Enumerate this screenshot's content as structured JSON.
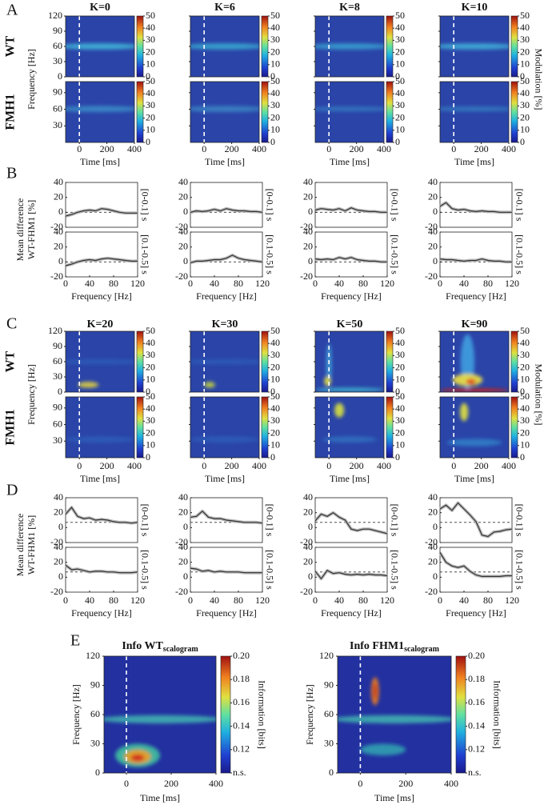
{
  "chart_data": [
    {
      "type": "heatmap_grid",
      "panel": "A",
      "titles": [
        "K=0",
        "K=6",
        "K=8",
        "K=10"
      ],
      "rows": [
        {
          "label": "WT",
          "ylim": [
            0,
            120
          ],
          "yticks": [
            0,
            30,
            60,
            90,
            120
          ]
        },
        {
          "label": "FMH1",
          "ylim": [
            0,
            110
          ],
          "yticks": [
            30,
            60,
            90
          ]
        }
      ],
      "ylabel": "Frequency [Hz]",
      "xlabel": "Time [ms]",
      "xlim": [
        -100,
        400
      ],
      "xticks": [
        0,
        200,
        400
      ],
      "onset": 0,
      "clim": [
        0,
        50
      ],
      "cticks": [
        0,
        10,
        20,
        30,
        40,
        50
      ],
      "clabel": "Modulation [%]"
    },
    {
      "type": "line_grid",
      "panel": "B",
      "ylabel": [
        "Mean difference",
        "WT-FHM1 [%]"
      ],
      "xlabel": "Frequency [Hz]",
      "row_labels": [
        "[0-0.1] s",
        "[0.1-0.5] s"
      ],
      "xlim": [
        0,
        120
      ],
      "xticks": [
        0,
        40,
        80,
        120
      ],
      "ylim": [
        -20,
        40
      ],
      "yticks": [
        -20,
        0,
        20,
        40
      ],
      "hline": 0,
      "color": "#333333",
      "x": [
        0,
        10,
        20,
        30,
        40,
        50,
        60,
        70,
        80,
        90,
        100,
        110,
        120
      ],
      "columns": [
        {
          "rows": [
            {
              "values": [
                -5,
                -3,
                0,
                2,
                3,
                2,
                5,
                4,
                2,
                0,
                -1,
                -1,
                -1
              ]
            },
            {
              "values": [
                -5,
                -3,
                0,
                2,
                3,
                2,
                4,
                5,
                4,
                3,
                2,
                1,
                1
              ]
            }
          ]
        },
        {
          "rows": [
            {
              "values": [
                0,
                2,
                1,
                2,
                4,
                2,
                5,
                3,
                2,
                2,
                1,
                1,
                0
              ]
            },
            {
              "values": [
                -1,
                1,
                1,
                2,
                3,
                3,
                5,
                9,
                5,
                3,
                2,
                1,
                0
              ]
            }
          ]
        },
        {
          "rows": [
            {
              "values": [
                3,
                5,
                4,
                3,
                5,
                2,
                6,
                3,
                2,
                1,
                1,
                0,
                0
              ]
            },
            {
              "values": [
                4,
                3,
                4,
                3,
                6,
                4,
                6,
                3,
                2,
                1,
                1,
                0,
                0
              ]
            }
          ]
        },
        {
          "rows": [
            {
              "values": [
                8,
                13,
                5,
                3,
                4,
                2,
                1,
                2,
                1,
                1,
                0,
                0,
                0
              ]
            },
            {
              "values": [
                4,
                3,
                3,
                2,
                1,
                2,
                2,
                4,
                2,
                1,
                1,
                0,
                0
              ]
            }
          ]
        }
      ]
    },
    {
      "type": "heatmap_grid",
      "panel": "C",
      "titles": [
        "K=20",
        "K=30",
        "K=50",
        "K=90"
      ],
      "rows": [
        {
          "label": "WT",
          "ylim": [
            0,
            120
          ],
          "yticks": [
            0,
            30,
            60,
            90,
            120
          ]
        },
        {
          "label": "FMH1",
          "ylim": [
            0,
            110
          ],
          "yticks": [
            30,
            60,
            90
          ]
        }
      ],
      "ylabel": "Frequency [Hz]",
      "xlabel": "Time [ms]",
      "xlim": [
        -100,
        400
      ],
      "xticks": [
        0,
        200,
        400
      ],
      "onset": 0,
      "clim": [
        0,
        50
      ],
      "cticks": [
        0,
        10,
        20,
        30,
        40,
        50
      ],
      "clabel": "Modulation [%]"
    },
    {
      "type": "line_grid",
      "panel": "D",
      "ylabel": [
        "Mean difference",
        "WT-FHM1 [%]"
      ],
      "xlabel": "Frequency [Hz]",
      "row_labels": [
        "[0-0.1] s",
        "[0.1-0.5] s"
      ],
      "xlim": [
        0,
        120
      ],
      "xticks": [
        0,
        40,
        80,
        120
      ],
      "ylim": [
        -20,
        40
      ],
      "yticks": [
        -20,
        0,
        20,
        40
      ],
      "hline": 7,
      "color": "#333333",
      "x": [
        0,
        10,
        20,
        30,
        40,
        50,
        60,
        70,
        80,
        90,
        100,
        110,
        120
      ],
      "columns": [
        {
          "rows": [
            {
              "values": [
                18,
                27,
                15,
                12,
                13,
                10,
                11,
                10,
                8,
                7,
                7,
                6,
                7
              ]
            },
            {
              "values": [
                16,
                10,
                11,
                9,
                7,
                8,
                8,
                7,
                7,
                6,
                6,
                6,
                7
              ]
            }
          ]
        },
        {
          "rows": [
            {
              "values": [
                14,
                15,
                22,
                14,
                12,
                12,
                10,
                9,
                8,
                7,
                7,
                7,
                6
              ]
            },
            {
              "values": [
                12,
                11,
                8,
                9,
                7,
                8,
                7,
                7,
                7,
                6,
                6,
                6,
                6
              ]
            }
          ]
        },
        {
          "rows": [
            {
              "values": [
                9,
                18,
                15,
                20,
                14,
                10,
                -2,
                -4,
                -2,
                -2,
                -4,
                -6,
                -8
              ]
            },
            {
              "values": [
                8,
                -2,
                9,
                5,
                6,
                4,
                3,
                4,
                3,
                4,
                3,
                3,
                2
              ]
            }
          ]
        },
        {
          "rows": [
            {
              "values": [
                25,
                30,
                23,
                33,
                25,
                17,
                8,
                -10,
                -12,
                -6,
                -5,
                -3,
                -2
              ]
            },
            {
              "values": [
                33,
                20,
                15,
                13,
                15,
                8,
                3,
                1,
                1,
                1,
                1,
                2,
                2
              ]
            }
          ]
        }
      ]
    },
    {
      "type": "heatmap",
      "panel": "E",
      "charts": [
        {
          "title": "Info WT",
          "title_sub": "scalogram"
        },
        {
          "title": "Info FHM1",
          "title_sub": "scalogram"
        }
      ],
      "ylabel": "Frequency [Hz]",
      "xlabel": "Time [ms]",
      "xlim": [
        -100,
        400
      ],
      "xticks": [
        0,
        200,
        400
      ],
      "onset": 0,
      "ylim": [
        0,
        120
      ],
      "yticks": [
        0,
        30,
        60,
        90,
        120
      ],
      "clim": [
        0.1,
        0.2
      ],
      "cticks": [
        {
          "value": 0.1,
          "label": "n.s."
        },
        0.12,
        0.14,
        0.16,
        0.18,
        {
          "value": 0.2,
          "label": "0.20"
        }
      ],
      "clabel": "Information [bits]"
    }
  ]
}
